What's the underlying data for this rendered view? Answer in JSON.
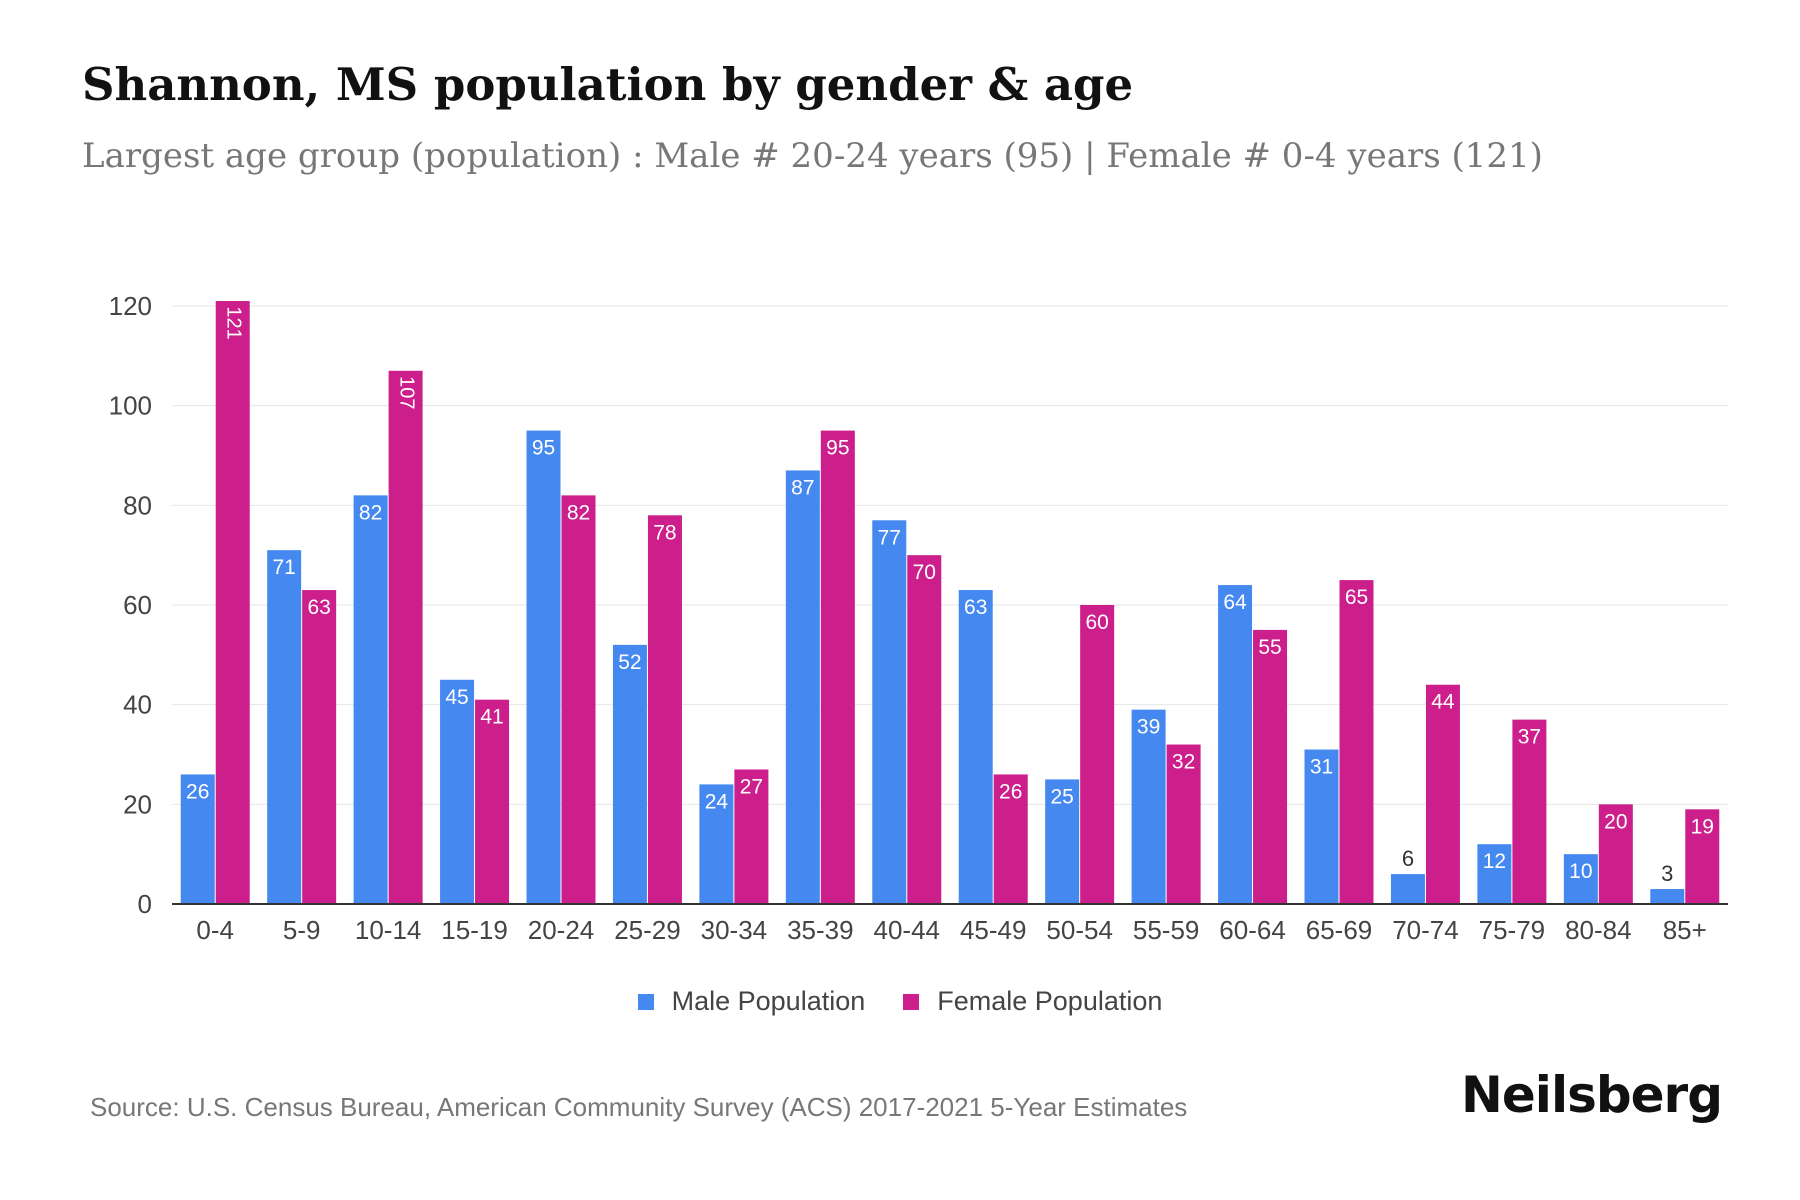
{
  "title": "Shannon, MS population by gender & age",
  "subtitle": "Largest age group (population) : Male # 20-24 years (95) | Female # 0-4 years (121)",
  "source": "Source: U.S. Census Bureau, American Community Survey (ACS) 2017-2021 5-Year Estimates",
  "brand": "Neilsberg",
  "colors": {
    "male": "#4589F0",
    "female": "#CC1F8C",
    "grid": "#E6E6E6",
    "axis": "#333333",
    "tick_text": "#444444"
  },
  "chart_data": {
    "type": "bar",
    "categories": [
      "0-4",
      "5-9",
      "10-14",
      "15-19",
      "20-24",
      "25-29",
      "30-34",
      "35-39",
      "40-44",
      "45-49",
      "50-54",
      "55-59",
      "60-64",
      "65-69",
      "70-74",
      "75-79",
      "80-84",
      "85+"
    ],
    "series": [
      {
        "name": "Male Population",
        "color": "#4589F0",
        "values": [
          26,
          71,
          82,
          45,
          95,
          52,
          24,
          87,
          77,
          63,
          25,
          39,
          64,
          31,
          6,
          12,
          10,
          3
        ]
      },
      {
        "name": "Female Population",
        "color": "#CC1F8C",
        "values": [
          121,
          63,
          107,
          41,
          82,
          78,
          27,
          95,
          70,
          26,
          60,
          32,
          55,
          65,
          44,
          37,
          20,
          19
        ]
      }
    ],
    "ylim": [
      0,
      120
    ],
    "yticks": [
      0,
      20,
      40,
      60,
      80,
      100,
      120
    ],
    "grid": true,
    "legend_position": "bottom-center"
  }
}
